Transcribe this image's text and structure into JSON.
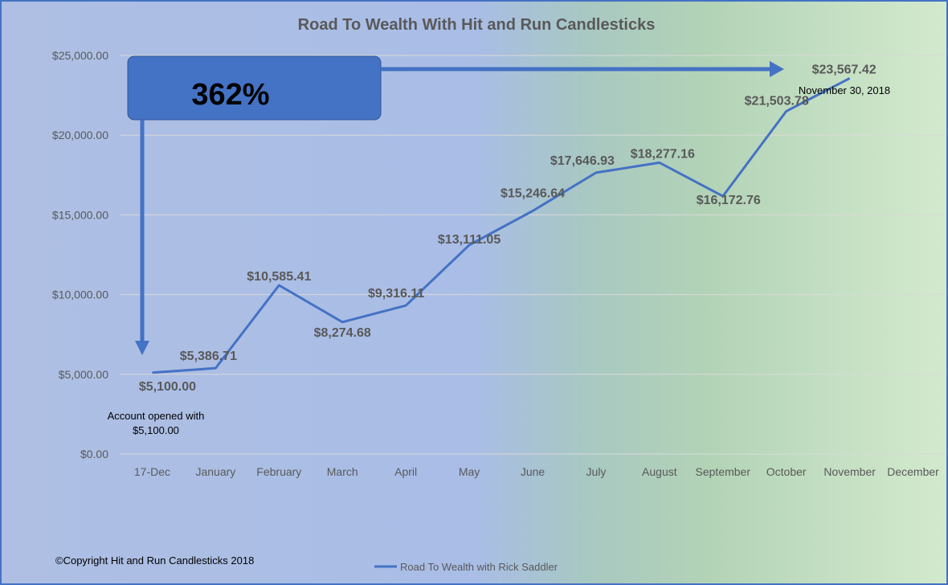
{
  "chart_data": {
    "type": "line",
    "title": "Road To Wealth With Hit and Run Candlesticks",
    "xlabel": "",
    "ylabel": "",
    "categories": [
      "17-Dec",
      "January",
      "February",
      "March",
      "April",
      "May",
      "June",
      "July",
      "August",
      "September",
      "October",
      "November",
      "December"
    ],
    "series": [
      {
        "name": "Road To Wealth with Rick Saddler",
        "values": [
          5100.0,
          5386.71,
          10585.41,
          8274.68,
          9316.11,
          13111.05,
          15246.64,
          17646.93,
          18277.16,
          16172.76,
          21503.78,
          23567.42,
          null
        ],
        "labels": [
          "$5,100.00",
          "$5,386.71",
          "$10,585.41",
          "$8,274.68",
          "$9,316.11",
          "$13,111.05",
          "$15,246.64",
          "$17,646.93",
          "$18,277.16",
          "$16,172.76",
          "$21,503.78",
          "$23,567.42",
          ""
        ]
      }
    ],
    "ylim": [
      0,
      25000
    ],
    "yticks": [
      "$0.00",
      "$5,000.00",
      "$10,000.00",
      "$15,000.00",
      "$20,000.00",
      "$25,000.00"
    ],
    "grid": true,
    "legend_position": "bottom",
    "line_color": "#4472c4",
    "annotations": {
      "gain_percent": "362%",
      "final_date": "November 30, 2018",
      "opened_line1": "Account opened with",
      "opened_line2": "$5,100.00"
    },
    "copyright": "©Copyright Hit and Run Candlesticks 2018"
  }
}
